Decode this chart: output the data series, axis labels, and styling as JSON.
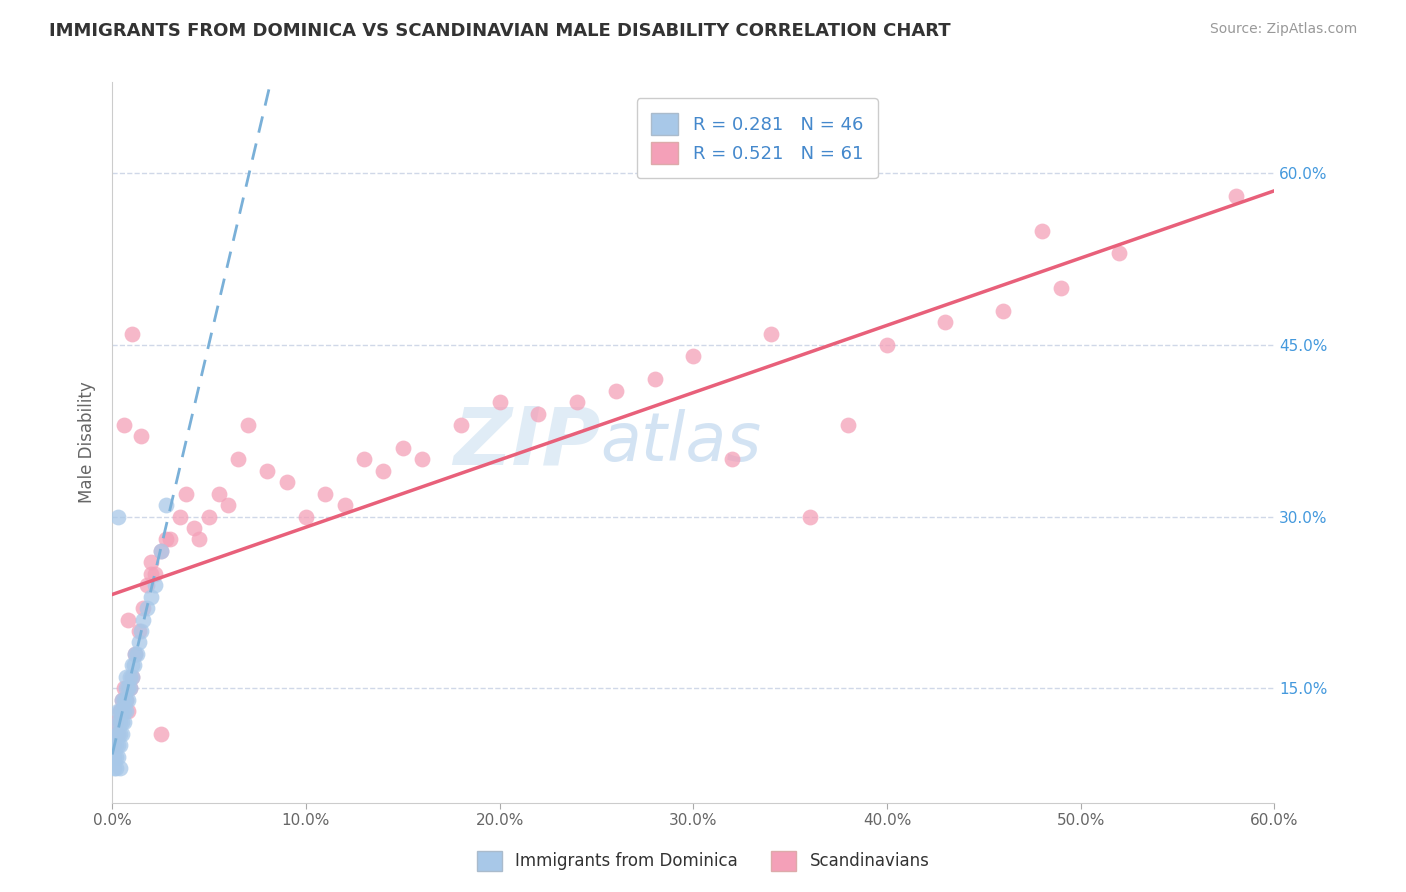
{
  "title": "IMMIGRANTS FROM DOMINICA VS SCANDINAVIAN MALE DISABILITY CORRELATION CHART",
  "source": "Source: ZipAtlas.com",
  "ylabel": "Male Disability",
  "legend_label1": "Immigrants from Dominica",
  "legend_label2": "Scandinavians",
  "r1": 0.281,
  "n1": 46,
  "r2": 0.521,
  "n2": 61,
  "color1": "#a8c8e8",
  "color2": "#f4a0b8",
  "trendline1_color": "#7ab0d8",
  "trendline2_color": "#e8607a",
  "xlim": [
    0.0,
    0.6
  ],
  "ylim": [
    0.05,
    0.68
  ],
  "xticks": [
    0.0,
    0.1,
    0.2,
    0.3,
    0.4,
    0.5,
    0.6
  ],
  "yticks_right": [
    0.15,
    0.3,
    0.45,
    0.6
  ],
  "ytick_labels_right": [
    "15.0%",
    "30.0%",
    "45.0%",
    "60.0%"
  ],
  "xtick_labels": [
    "0.0%",
    "10.0%",
    "20.0%",
    "30.0%",
    "40.0%",
    "50.0%",
    "60.0%"
  ],
  "watermark_zip": "ZIP",
  "watermark_atlas": "atlas",
  "background_color": "#ffffff",
  "grid_color": "#d0d8e8",
  "series1_x": [
    0.001,
    0.001,
    0.001,
    0.002,
    0.002,
    0.002,
    0.002,
    0.003,
    0.003,
    0.003,
    0.003,
    0.003,
    0.004,
    0.004,
    0.004,
    0.004,
    0.005,
    0.005,
    0.005,
    0.005,
    0.006,
    0.006,
    0.006,
    0.007,
    0.007,
    0.007,
    0.007,
    0.008,
    0.008,
    0.009,
    0.009,
    0.01,
    0.01,
    0.011,
    0.012,
    0.013,
    0.014,
    0.015,
    0.016,
    0.018,
    0.02,
    0.022,
    0.025,
    0.028,
    0.003,
    0.004
  ],
  "series1_y": [
    0.08,
    0.09,
    0.1,
    0.08,
    0.09,
    0.1,
    0.11,
    0.09,
    0.1,
    0.11,
    0.12,
    0.13,
    0.1,
    0.11,
    0.12,
    0.13,
    0.11,
    0.12,
    0.13,
    0.14,
    0.12,
    0.13,
    0.14,
    0.13,
    0.14,
    0.15,
    0.16,
    0.14,
    0.15,
    0.15,
    0.16,
    0.16,
    0.17,
    0.17,
    0.18,
    0.18,
    0.19,
    0.2,
    0.21,
    0.22,
    0.23,
    0.24,
    0.27,
    0.31,
    0.3,
    0.08
  ],
  "series2_x": [
    0.001,
    0.002,
    0.003,
    0.004,
    0.005,
    0.006,
    0.007,
    0.008,
    0.009,
    0.01,
    0.012,
    0.014,
    0.016,
    0.018,
    0.02,
    0.022,
    0.025,
    0.028,
    0.03,
    0.035,
    0.038,
    0.042,
    0.045,
    0.05,
    0.055,
    0.06,
    0.065,
    0.07,
    0.08,
    0.09,
    0.1,
    0.11,
    0.12,
    0.13,
    0.14,
    0.15,
    0.16,
    0.18,
    0.2,
    0.22,
    0.24,
    0.26,
    0.28,
    0.3,
    0.32,
    0.34,
    0.36,
    0.38,
    0.4,
    0.43,
    0.46,
    0.49,
    0.52,
    0.01,
    0.008,
    0.006,
    0.015,
    0.02,
    0.025,
    0.58,
    0.48
  ],
  "series2_y": [
    0.1,
    0.12,
    0.11,
    0.13,
    0.14,
    0.15,
    0.14,
    0.13,
    0.15,
    0.16,
    0.18,
    0.2,
    0.22,
    0.24,
    0.26,
    0.25,
    0.27,
    0.28,
    0.28,
    0.3,
    0.32,
    0.29,
    0.28,
    0.3,
    0.32,
    0.31,
    0.35,
    0.38,
    0.34,
    0.33,
    0.3,
    0.32,
    0.31,
    0.35,
    0.34,
    0.36,
    0.35,
    0.38,
    0.4,
    0.39,
    0.4,
    0.41,
    0.42,
    0.44,
    0.35,
    0.46,
    0.3,
    0.38,
    0.45,
    0.47,
    0.48,
    0.5,
    0.53,
    0.46,
    0.21,
    0.38,
    0.37,
    0.25,
    0.11,
    0.58,
    0.55
  ],
  "trendline1_x_start": 0.0,
  "trendline1_x_end": 0.028,
  "trendline2_x_start": 0.0,
  "trendline2_x_end": 0.6
}
